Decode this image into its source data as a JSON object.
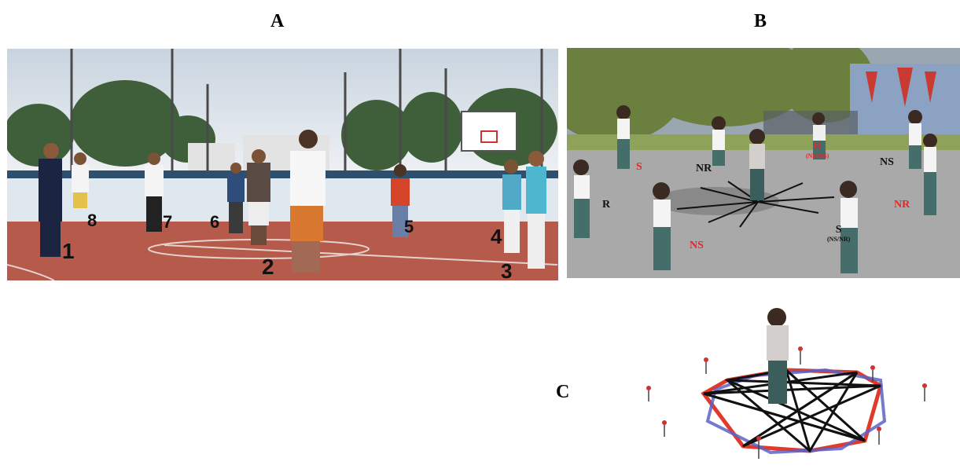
{
  "panels": {
    "a": {
      "letter": "A",
      "player_numbers": [
        "1",
        "2",
        "3",
        "4",
        "5",
        "6",
        "7",
        "8"
      ]
    },
    "b": {
      "letter": "B",
      "labels": [
        {
          "text": "S",
          "sub": "",
          "color": "#e8262a"
        },
        {
          "text": "NR",
          "sub": "",
          "color": "#111111"
        },
        {
          "text": "R",
          "sub": "(NR/NS)",
          "color": "#e8262a"
        },
        {
          "text": "NS",
          "sub": "",
          "color": "#111111"
        },
        {
          "text": "R",
          "sub": "",
          "color": "#111111"
        },
        {
          "text": "NR",
          "sub": "",
          "color": "#e8262a"
        },
        {
          "text": "NS",
          "sub": "",
          "color": "#e8262a"
        },
        {
          "text": "S",
          "sub": "(NS/NR)",
          "color": "#111111"
        }
      ]
    },
    "c": {
      "letter": "C"
    }
  }
}
